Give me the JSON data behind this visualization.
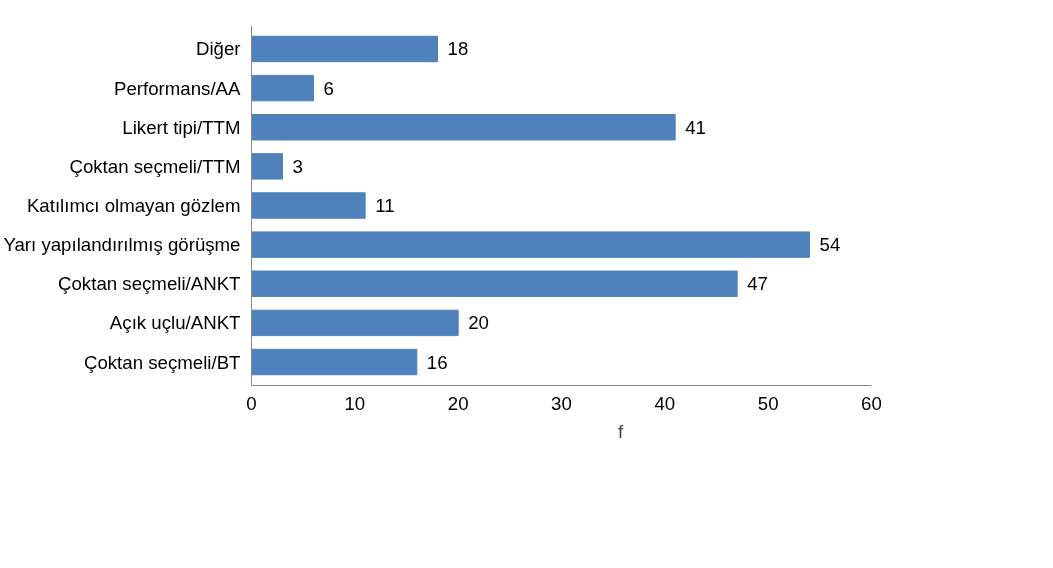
{
  "chart_data": {
    "type": "bar",
    "orientation": "horizontal",
    "categories": [
      "Diğer",
      "Performans/AA",
      "Likert tipi/TTM",
      "Çoktan seçmeli/TTM",
      "Katılımcı olmayan gözlem",
      "Yarı yapılandırılmış görüşme",
      "Çoktan seçmeli/ANKT",
      "Açık uçlu/ANKT",
      "Çoktan seçmeli/BT"
    ],
    "series": [
      {
        "name": "f",
        "color": "#4f81bd",
        "values": [
          18,
          6,
          41,
          3,
          11,
          54,
          47,
          20,
          16
        ]
      }
    ],
    "xlim": [
      0,
      60
    ],
    "xticks": [
      0,
      10,
      20,
      30,
      40,
      50,
      60
    ],
    "data_labels": true,
    "grid": false,
    "legend": "bottom"
  }
}
